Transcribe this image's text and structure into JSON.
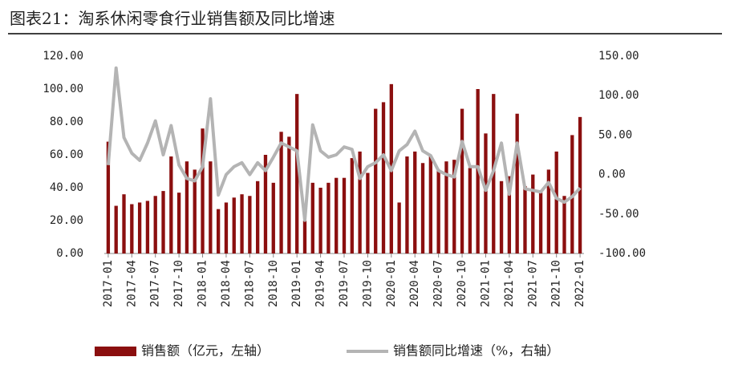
{
  "chart_data": {
    "type": "bar_line",
    "title": "图表21：淘系休闲零食行业销售额及同比增速",
    "categories": [
      "2017-01",
      null,
      null,
      "2017-04",
      null,
      null,
      "2017-07",
      null,
      null,
      "2017-10",
      null,
      null,
      "2018-01",
      null,
      null,
      "2018-04",
      null,
      null,
      "2018-07",
      null,
      null,
      "2018-10",
      null,
      null,
      "2019-01",
      null,
      null,
      "2019-04",
      null,
      null,
      "2019-07",
      null,
      null,
      "2019-10",
      null,
      null,
      "2020-01",
      null,
      null,
      "2020-04",
      null,
      null,
      "2020-07",
      null,
      null,
      "2020-10",
      null,
      null,
      "2021-01",
      null,
      null,
      "2021-04",
      null,
      null,
      "2021-07",
      null,
      null,
      "2021-10",
      null,
      null,
      "2022-01"
    ],
    "series": [
      {
        "name": "销售额（亿元，左轴）",
        "type": "bar",
        "color": "#8b0f0f",
        "axis": "y",
        "values": [
          68,
          29,
          36,
          30,
          31,
          32,
          35,
          38,
          59,
          37,
          56,
          51,
          76,
          56,
          27,
          31,
          34,
          36,
          35,
          44,
          60,
          43,
          74,
          71,
          97,
          20,
          43,
          40,
          43,
          46,
          46,
          58,
          62,
          49,
          88,
          92,
          103,
          31,
          59,
          62,
          55,
          59,
          51,
          56,
          57,
          88,
          52,
          100,
          73,
          97,
          44,
          47,
          85,
          41,
          48,
          37,
          51,
          62,
          35,
          72,
          83
        ]
      },
      {
        "name": "销售额同比增速（%，右轴）",
        "type": "line",
        "color": "#b4b4b4",
        "axis": "y2",
        "values": [
          12,
          135,
          47,
          27,
          18,
          40,
          68,
          25,
          62,
          12,
          -5,
          -8,
          10,
          96,
          -26,
          0,
          10,
          15,
          0,
          15,
          5,
          22,
          40,
          35,
          30,
          -58,
          63,
          30,
          22,
          25,
          35,
          32,
          -5,
          10,
          15,
          25,
          5,
          30,
          38,
          55,
          30,
          24,
          5,
          0,
          -3,
          42,
          10,
          10,
          -20,
          5,
          40,
          -25,
          40,
          -18,
          -20,
          -22,
          -10,
          -30,
          -35,
          -28,
          -17
        ]
      }
    ],
    "ylim": [
      0,
      120
    ],
    "yticks": [
      {
        "value": 0,
        "label": "0.00"
      },
      {
        "value": 20,
        "label": "20.00"
      },
      {
        "value": 40,
        "label": "40.00"
      },
      {
        "value": 60,
        "label": "60.00"
      },
      {
        "value": 80,
        "label": "80.00"
      },
      {
        "value": 100,
        "label": "100.00"
      },
      {
        "value": 120,
        "label": "120.00"
      }
    ],
    "y2lim": [
      -100,
      150
    ],
    "y2ticks": [
      {
        "value": -100,
        "label": "-100.00"
      },
      {
        "value": -50,
        "label": "-50.00"
      },
      {
        "value": 0,
        "label": "0.00"
      },
      {
        "value": 50,
        "label": "50.00"
      },
      {
        "value": 100,
        "label": "100.00"
      },
      {
        "value": 150,
        "label": "150.00"
      }
    ],
    "legend": "bottom"
  }
}
